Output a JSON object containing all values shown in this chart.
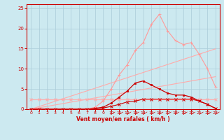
{
  "x": [
    0,
    1,
    2,
    3,
    4,
    5,
    6,
    7,
    8,
    9,
    10,
    11,
    12,
    13,
    14,
    15,
    16,
    17,
    18,
    19,
    20,
    21,
    22,
    23
  ],
  "line_diag1": [
    0.0,
    0.65,
    1.3,
    1.95,
    2.6,
    3.25,
    3.9,
    4.55,
    5.2,
    5.85,
    6.5,
    7.15,
    7.8,
    8.45,
    9.1,
    9.75,
    10.4,
    11.05,
    11.7,
    12.35,
    13.0,
    13.65,
    14.3,
    14.95
  ],
  "line_diag2": [
    0.0,
    0.35,
    0.7,
    1.05,
    1.4,
    1.75,
    2.1,
    2.45,
    2.8,
    3.15,
    3.5,
    3.85,
    4.2,
    4.55,
    4.9,
    5.25,
    5.6,
    5.95,
    6.3,
    6.65,
    7.0,
    7.35,
    7.7,
    8.05
  ],
  "line_pink_flat": [
    2.5,
    2.5,
    2.5,
    2.5,
    2.5,
    2.5,
    2.5,
    2.5,
    2.5,
    2.5,
    2.5,
    2.5,
    2.5,
    2.5,
    2.5,
    2.5,
    2.5,
    2.5,
    2.5,
    2.5,
    2.5,
    2.5,
    2.5,
    2.5
  ],
  "line_pink_curve": [
    0.0,
    0.0,
    0.0,
    0.0,
    0.0,
    0.0,
    0.0,
    0.0,
    0.5,
    2.0,
    5.0,
    8.5,
    11.0,
    14.5,
    16.5,
    21.0,
    23.5,
    19.5,
    17.0,
    16.0,
    16.5,
    13.5,
    10.0,
    5.5
  ],
  "line_red_curve": [
    0.0,
    0.0,
    0.0,
    0.0,
    0.0,
    0.0,
    0.0,
    0.0,
    0.2,
    0.5,
    1.5,
    3.0,
    4.5,
    6.5,
    7.0,
    6.0,
    5.0,
    4.0,
    3.5,
    3.5,
    3.0,
    2.0,
    1.2,
    0.2
  ],
  "line_red_flat": [
    0.0,
    0.0,
    0.0,
    0.0,
    0.0,
    0.0,
    0.0,
    0.0,
    0.1,
    0.3,
    0.7,
    1.2,
    1.8,
    2.0,
    2.5,
    2.5,
    2.5,
    2.5,
    2.5,
    2.5,
    2.5,
    2.0,
    1.2,
    0.2
  ],
  "bg_color": "#cce9f0",
  "grid_color": "#aaccd8",
  "xlabel": "Vent moyen/en rafales ( km/h )",
  "ylim": [
    0,
    26
  ],
  "xlim": [
    -0.5,
    23.5
  ],
  "yticks": [
    0,
    5,
    10,
    15,
    20,
    25
  ],
  "xticks": [
    0,
    1,
    2,
    3,
    4,
    5,
    6,
    7,
    8,
    9,
    10,
    11,
    12,
    13,
    14,
    15,
    16,
    17,
    18,
    19,
    20,
    21,
    22,
    23
  ]
}
